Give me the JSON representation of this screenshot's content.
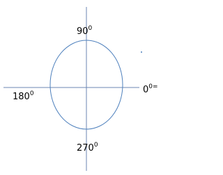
{
  "labels": [
    {
      "text": "90",
      "sup": "0"
    },
    {
      "text": "180",
      "sup": "0"
    },
    {
      "text": "0",
      "sup": "0="
    },
    {
      "text": "270",
      "sup": "0"
    }
  ]
}
